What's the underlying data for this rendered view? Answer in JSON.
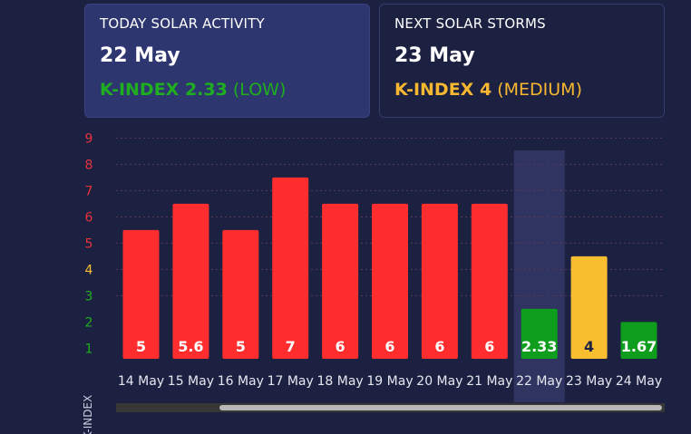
{
  "today_card": {
    "label": "TODAY SOLAR ACTIVITY",
    "date": "22 May",
    "kindex_text": "K-INDEX 2.33",
    "level_text": "(LOW)",
    "color": "#1fae1f"
  },
  "next_card": {
    "label": "NEXT SOLAR STORMS",
    "date": "23 May",
    "kindex_text": "K-INDEX 4",
    "level_text": "(MEDIUM)",
    "color": "#f7b731"
  },
  "chart_data": {
    "type": "bar",
    "categories": [
      "14 May",
      "15 May",
      "16 May",
      "17 May",
      "18 May",
      "19 May",
      "20 May",
      "21 May",
      "22 May",
      "23 May",
      "24 May"
    ],
    "values": [
      5,
      5.6,
      5,
      7,
      6,
      6,
      6,
      6,
      2.33,
      4,
      1.67
    ],
    "heights": [
      5.5,
      6.5,
      5.5,
      7.5,
      6.5,
      6.5,
      6.5,
      6.5,
      2.5,
      4.5,
      2.0
    ],
    "bar_colors": [
      "#ff2d2d",
      "#ff2d2d",
      "#ff2d2d",
      "#ff2d2d",
      "#ff2d2d",
      "#ff2d2d",
      "#ff2d2d",
      "#ff2d2d",
      "#0f9d1e",
      "#f9be30",
      "#0f9d1e"
    ],
    "label_colors": [
      "#ffffff",
      "#ffffff",
      "#ffffff",
      "#ffffff",
      "#ffffff",
      "#ffffff",
      "#ffffff",
      "#ffffff",
      "#ffffff",
      "#1c2142",
      "#ffffff"
    ],
    "highlight_index": 8,
    "ylabel": "K-INDEX",
    "yticks": [
      "1",
      "2",
      "3",
      "4",
      "5",
      "6",
      "7",
      "8",
      "9"
    ],
    "ytick_colors": [
      "#1fae1f",
      "#1fae1f",
      "#1fae1f",
      "#f9be30",
      "#e8333b",
      "#e8333b",
      "#e8333b",
      "#e8333b",
      "#e8333b"
    ],
    "ylim": [
      0.6,
      9
    ],
    "grid": true
  },
  "scrollbar": {
    "position": 0.2
  }
}
